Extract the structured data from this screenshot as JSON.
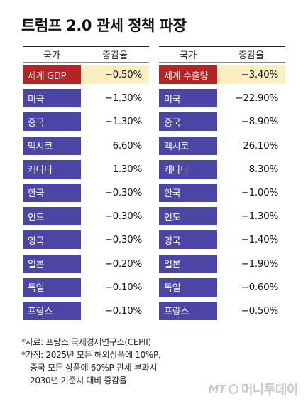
{
  "title": "트럼프 2.0 관세 정책 파장",
  "chart_data": [
    {
      "type": "table",
      "columns": [
        "국가",
        "증감율"
      ],
      "rows": [
        {
          "country": "세계 GDP",
          "value": "−0.50%",
          "highlight": true
        },
        {
          "country": "미국",
          "value": "−1.30%"
        },
        {
          "country": "중국",
          "value": "−1.30%"
        },
        {
          "country": "멕시코",
          "value": "6.60%"
        },
        {
          "country": "캐나다",
          "value": "1.30%"
        },
        {
          "country": "한국",
          "value": "−0.30%"
        },
        {
          "country": "인도",
          "value": "−0.30%"
        },
        {
          "country": "영국",
          "value": "−0.30%"
        },
        {
          "country": "일본",
          "value": "−0.20%"
        },
        {
          "country": "독일",
          "value": "−0.10%"
        },
        {
          "country": "프랑스",
          "value": "−0.10%"
        }
      ]
    },
    {
      "type": "table",
      "columns": [
        "국가",
        "증감율"
      ],
      "rows": [
        {
          "country": "세계 수출량",
          "value": "−3.40%",
          "highlight": true
        },
        {
          "country": "미국",
          "value": "−22.90%"
        },
        {
          "country": "중국",
          "value": "−8.90%"
        },
        {
          "country": "멕시코",
          "value": "26.10%"
        },
        {
          "country": "캐나다",
          "value": "8.30%"
        },
        {
          "country": "한국",
          "value": "−1.00%"
        },
        {
          "country": "인도",
          "value": "−1.30%"
        },
        {
          "country": "영국",
          "value": "−1.40%"
        },
        {
          "country": "일본",
          "value": "−1.90%"
        },
        {
          "country": "독일",
          "value": "−0.60%"
        },
        {
          "country": "프랑스",
          "value": "−0.50%"
        }
      ]
    }
  ],
  "notes": {
    "source": "*자료: 프랑스 국제경제연구소(CEPII)",
    "assumption_1": "*가정: 2025년 모든 해외상품에 10%P,",
    "assumption_2": "중국 모든 상품에 60%P 관세 부과시",
    "assumption_3": "2030년 기준치 대비 증감율"
  },
  "watermark": {
    "mark": "MT",
    "text": "머니투데이"
  },
  "colors": {
    "country_cell": "#4b45a6",
    "highlight_country_cell": "#b52424",
    "highlight_value_cell": "#fbefc2"
  }
}
